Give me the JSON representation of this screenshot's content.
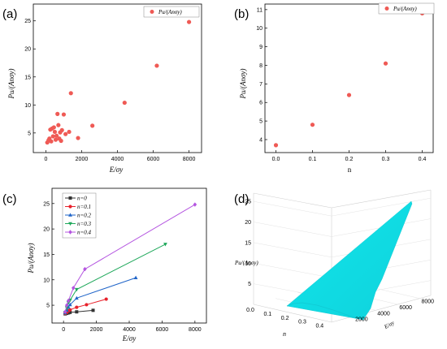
{
  "panels": {
    "a": "(a)",
    "b": "(b)",
    "c": "(c)",
    "d": "(d)"
  },
  "colors": {
    "scatter": "#ef5a55",
    "n0": "#333333",
    "n01": "#e8212b",
    "n02": "#1f64c8",
    "n03": "#1fa85b",
    "n04": "#b455e0",
    "surface": "#12e5ea"
  },
  "chart_data": [
    {
      "id": "a",
      "type": "scatter",
      "xlabel": "E/σy",
      "ylabel": "Pu/(Anσy)",
      "legend": "Pu/(Anσy)",
      "legend_placement": "top-right",
      "xlim": [
        -700,
        8700
      ],
      "ylim": [
        1.5,
        28
      ],
      "xticks": [
        0,
        2000,
        4000,
        6000,
        8000
      ],
      "yticks": [
        5,
        10,
        15,
        20,
        25
      ],
      "grid": false,
      "x": [
        80,
        150,
        200,
        250,
        300,
        350,
        400,
        450,
        500,
        550,
        600,
        650,
        700,
        750,
        800,
        850,
        900,
        1000,
        1100,
        1300,
        1400,
        1800,
        2600,
        4400,
        6200,
        8000
      ],
      "y": [
        3.3,
        3.7,
        4.0,
        5.6,
        3.5,
        5.8,
        4.4,
        6.0,
        5.2,
        3.8,
        4.5,
        8.4,
        6.4,
        4.0,
        5.1,
        3.6,
        5.5,
        8.3,
        4.8,
        5.2,
        12.1,
        4.1,
        6.3,
        10.4,
        17.0,
        24.8
      ]
    },
    {
      "id": "b",
      "type": "scatter",
      "xlabel": "n",
      "ylabel": "Pu/(Anσy)",
      "legend": "Pu/(Anσy)",
      "legend_placement": "top-right",
      "xlim": [
        -0.03,
        0.43
      ],
      "ylim": [
        3.3,
        11.3
      ],
      "xticks": [
        0.0,
        0.1,
        0.2,
        0.3,
        0.4
      ],
      "yticks": [
        4,
        5,
        6,
        7,
        8,
        9,
        10,
        11
      ],
      "grid": false,
      "x": [
        0.0,
        0.1,
        0.2,
        0.3,
        0.4
      ],
      "y": [
        3.7,
        4.8,
        6.4,
        8.1,
        10.8
      ]
    },
    {
      "id": "c",
      "type": "line",
      "xlabel": "E/σy",
      "ylabel": "Pu/(Anσy)",
      "legend_placement": "top-left",
      "xlim": [
        -700,
        8700
      ],
      "ylim": [
        1.5,
        28
      ],
      "xticks": [
        0,
        2000,
        4000,
        6000,
        8000
      ],
      "yticks": [
        5,
        10,
        15,
        20,
        25
      ],
      "grid": false,
      "series": [
        {
          "name": "n=0",
          "marker": "square",
          "color": "#333333",
          "x": [
            100,
            200,
            300,
            400,
            800,
            1800
          ],
          "y": [
            3.3,
            3.4,
            3.5,
            3.6,
            3.7,
            4.0
          ]
        },
        {
          "name": "n=0.1",
          "marker": "circle",
          "color": "#e8212b",
          "x": [
            100,
            200,
            300,
            400,
            800,
            1400,
            2600
          ],
          "y": [
            3.4,
            3.6,
            3.9,
            4.1,
            4.6,
            5.1,
            6.2
          ]
        },
        {
          "name": "n=0.2",
          "marker": "triangle-up",
          "color": "#1f64c8",
          "x": [
            100,
            200,
            300,
            400,
            800,
            4400
          ],
          "y": [
            3.5,
            4.0,
            4.6,
            5.1,
            6.4,
            10.4
          ]
        },
        {
          "name": "n=0.3",
          "marker": "triangle-down",
          "color": "#1fa85b",
          "x": [
            100,
            200,
            300,
            400,
            800,
            6200
          ],
          "y": [
            3.6,
            4.5,
            5.5,
            6.0,
            8.1,
            17.0
          ]
        },
        {
          "name": "n=0.4",
          "marker": "diamond",
          "color": "#b455e0",
          "x": [
            100,
            200,
            300,
            600,
            1300,
            8000
          ],
          "y": [
            3.7,
            5.0,
            5.9,
            8.4,
            12.1,
            24.8
          ]
        }
      ]
    },
    {
      "id": "d",
      "type": "surface",
      "xlabel": "n",
      "ylabel": "E/σy",
      "zlabel": "Pu/(Anσy)",
      "xticks": [
        0.0,
        0.1,
        0.2,
        0.3,
        0.4
      ],
      "yticks": [
        2000,
        4000,
        6000,
        8000
      ],
      "zticks": [
        5,
        10,
        15,
        20,
        25
      ]
    }
  ]
}
